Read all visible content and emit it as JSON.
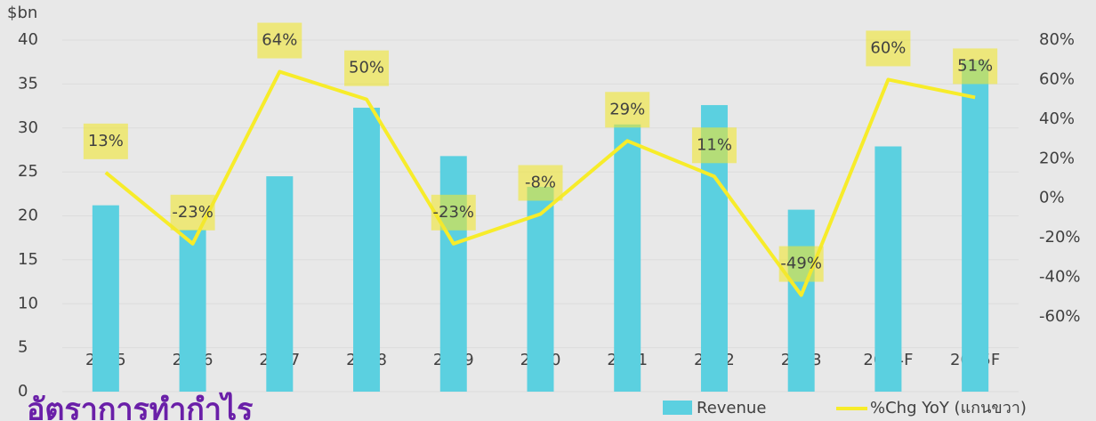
{
  "chart_data": {
    "type": "bar_line",
    "y_unit": "$bn",
    "categories": [
      "2015",
      "2016",
      "2017",
      "2018",
      "2019",
      "2020",
      "2021",
      "2022",
      "2023",
      "2024F",
      "2025F"
    ],
    "series": [
      {
        "name": "Revenue",
        "color": "#5bd0e0",
        "values": [
          21.2,
          18.4,
          24.5,
          32.3,
          26.8,
          23.3,
          30.4,
          32.6,
          20.7,
          27.9,
          37.7
        ]
      },
      {
        "name": "%Chg YoY (แกนขวา)",
        "color": "#f7ec2a",
        "axis": "y2",
        "values": [
          13,
          -23,
          64,
          50,
          -23,
          -8,
          29,
          11,
          -49,
          60,
          51
        ],
        "value_labels": [
          "13%",
          "-23%",
          "64%",
          "50%",
          "-23%",
          "-8%",
          "29%",
          "11%",
          "-49%",
          "60%",
          "51%"
        ]
      }
    ],
    "ylim": [
      0,
      40
    ],
    "yticks": [
      0,
      5,
      10,
      15,
      20,
      25,
      30,
      35,
      40
    ],
    "y2lim": [
      -60,
      80
    ],
    "y2ticks": [
      {
        "value": -60,
        "label": "-60%"
      },
      {
        "value": -40,
        "label": "-40%"
      },
      {
        "value": -20,
        "label": "-20%"
      },
      {
        "value": 0,
        "label": "0%"
      },
      {
        "value": 20,
        "label": "20%"
      },
      {
        "value": 40,
        "label": "40%"
      },
      {
        "value": 60,
        "label": "60%"
      },
      {
        "value": 80,
        "label": "80%"
      }
    ],
    "caption": "อัตราการทำกำไร"
  }
}
